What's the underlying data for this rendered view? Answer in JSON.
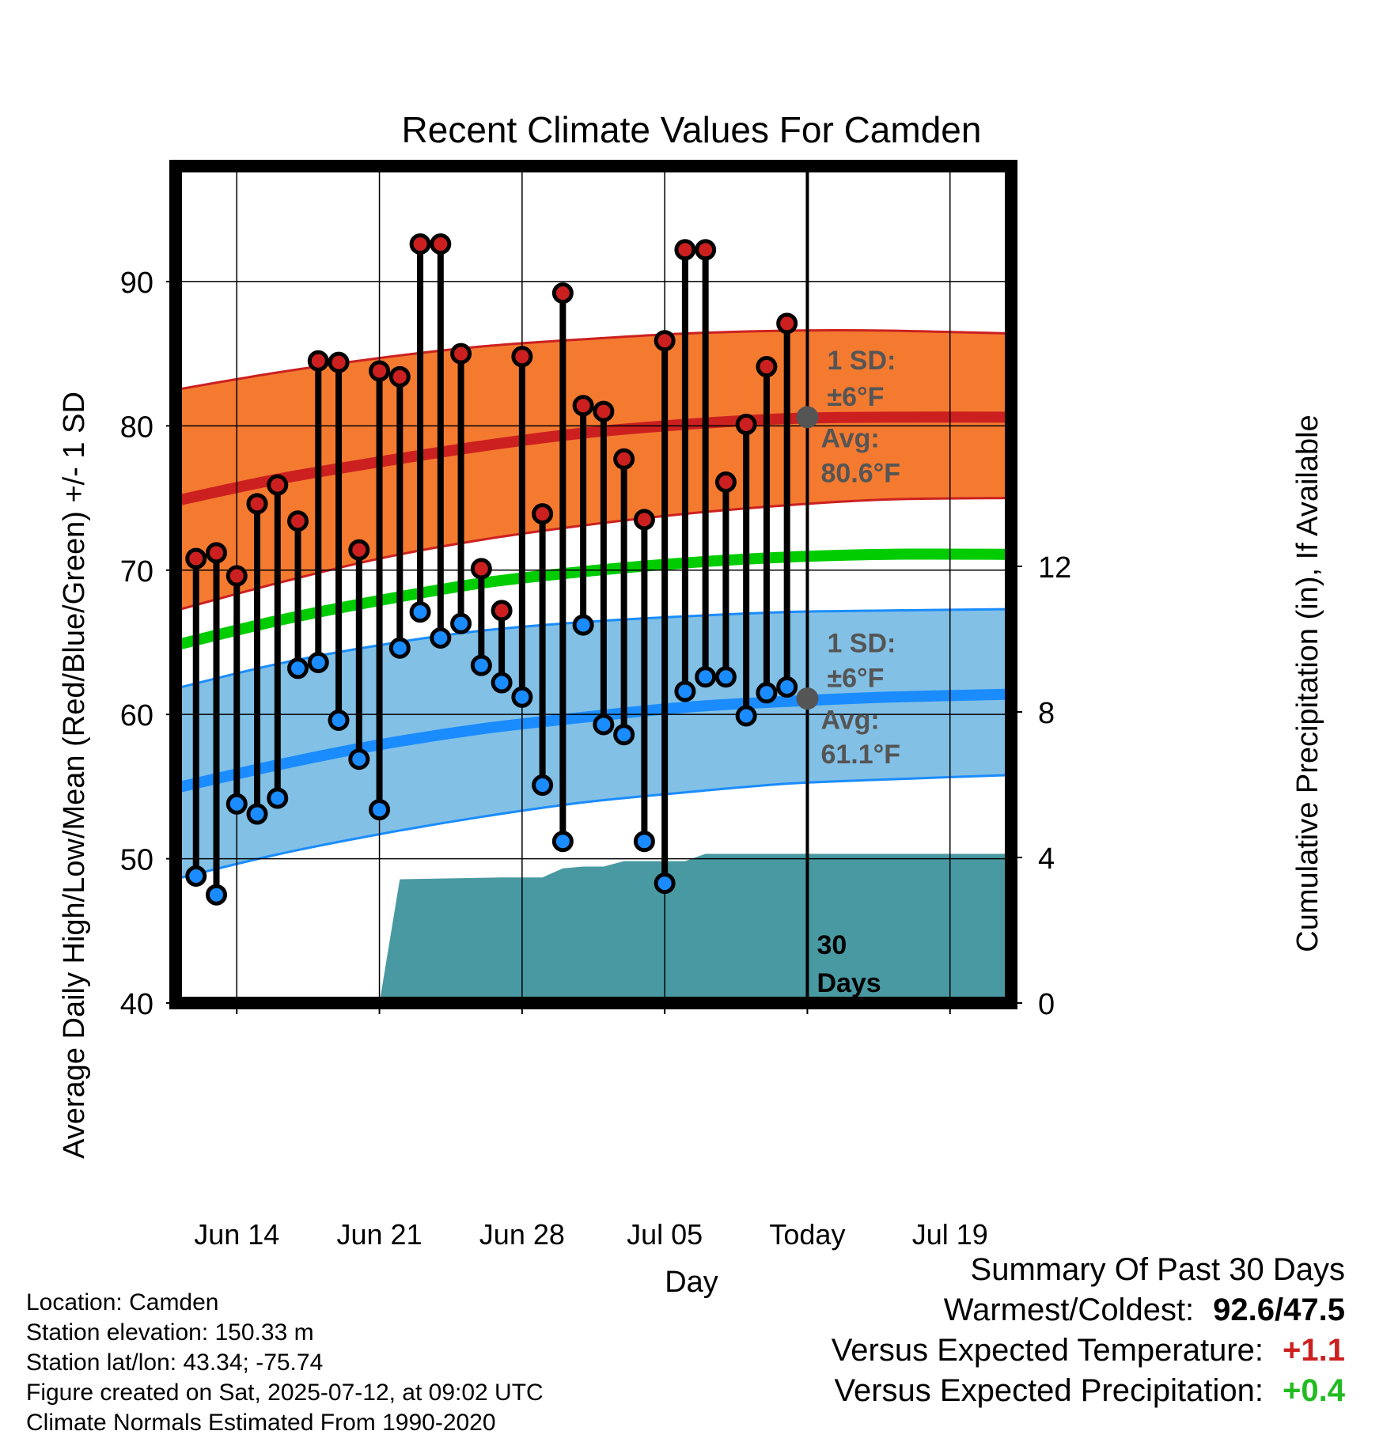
{
  "chart_data": {
    "type": "line",
    "title": "Recent Climate Values For Camden",
    "xlabel": "Day",
    "ylabel": "Average Daily High/Low/Mean (Red/Blue/Green) +/- 1 SD",
    "y2label": "Cumulative Precipitation (in), If Available",
    "x_tick_labels": [
      "Jun 14",
      "Jun 21",
      "Jun 28",
      "Jul 05",
      "Today",
      "Jul 19"
    ],
    "x_tick_days": [
      "2025-06-14",
      "2025-06-21",
      "2025-06-28",
      "2025-07-05",
      "2025-07-12",
      "2025-07-19"
    ],
    "xlim": [
      "2025-06-11",
      "2025-07-22"
    ],
    "ylim": [
      40,
      98
    ],
    "y_ticks": [
      40,
      50,
      60,
      70,
      80,
      90
    ],
    "y2lim": [
      0,
      23
    ],
    "y2_ticks": [
      0,
      4,
      8,
      12
    ],
    "grid": true,
    "dates": [
      "2025-06-12",
      "2025-06-13",
      "2025-06-14",
      "2025-06-15",
      "2025-06-16",
      "2025-06-17",
      "2025-06-18",
      "2025-06-19",
      "2025-06-20",
      "2025-06-21",
      "2025-06-22",
      "2025-06-23",
      "2025-06-24",
      "2025-06-25",
      "2025-06-26",
      "2025-06-27",
      "2025-06-28",
      "2025-06-29",
      "2025-06-30",
      "2025-07-01",
      "2025-07-02",
      "2025-07-03",
      "2025-07-04",
      "2025-07-05",
      "2025-07-06",
      "2025-07-07",
      "2025-07-08",
      "2025-07-09",
      "2025-07-10",
      "2025-07-11"
    ],
    "daily_high": [
      70.8,
      71.2,
      69.6,
      74.6,
      75.9,
      73.4,
      84.5,
      84.4,
      71.4,
      83.8,
      83.4,
      92.6,
      92.6,
      85.0,
      70.1,
      67.2,
      84.8,
      73.9,
      89.2,
      81.4,
      81.0,
      77.7,
      73.5,
      85.9,
      92.2,
      92.2,
      76.1,
      80.1,
      84.1,
      87.1
    ],
    "daily_low": [
      48.8,
      47.5,
      53.8,
      53.1,
      54.2,
      63.2,
      63.6,
      59.6,
      56.9,
      53.4,
      64.6,
      67.1,
      65.3,
      66.3,
      63.4,
      62.2,
      61.2,
      55.1,
      51.2,
      66.2,
      59.3,
      58.6,
      51.2,
      48.3,
      61.6,
      62.6,
      62.6,
      59.9,
      61.5,
      61.9
    ],
    "normals_days": [
      "2025-06-11",
      "2025-06-16",
      "2025-06-21",
      "2025-06-26",
      "2025-07-01",
      "2025-07-06",
      "2025-07-11",
      "2025-07-16",
      "2025-07-22"
    ],
    "normal_high": [
      74.8,
      76.3,
      77.5,
      78.6,
      79.5,
      80.1,
      80.5,
      80.6,
      80.6
    ],
    "normal_high_upper": [
      82.5,
      83.7,
      84.7,
      85.5,
      86.0,
      86.4,
      86.6,
      86.6,
      86.4
    ],
    "normal_high_lower": [
      67.2,
      69.1,
      70.8,
      72.1,
      73.1,
      73.9,
      74.5,
      74.9,
      75.0
    ],
    "normal_mean": [
      64.8,
      66.5,
      67.9,
      69.1,
      69.9,
      70.5,
      70.9,
      71.1,
      71.1
    ],
    "normal_low": [
      54.9,
      56.5,
      57.9,
      59.0,
      59.8,
      60.5,
      60.9,
      61.2,
      61.4
    ],
    "normal_low_upper": [
      61.8,
      63.5,
      64.8,
      65.8,
      66.4,
      66.8,
      67.1,
      67.2,
      67.3
    ],
    "normal_low_lower": [
      48.6,
      50.3,
      51.7,
      52.9,
      53.9,
      54.6,
      55.2,
      55.5,
      55.8
    ],
    "precip_days": [
      "2025-06-21",
      "2025-06-22",
      "2025-06-27",
      "2025-06-29",
      "2025-06-30",
      "2025-07-01",
      "2025-07-02",
      "2025-07-03",
      "2025-07-04",
      "2025-07-05",
      "2025-07-06",
      "2025-07-07",
      "2025-07-22"
    ],
    "precip_cumulative": [
      0.0,
      3.4,
      3.45,
      3.45,
      3.7,
      3.75,
      3.75,
      3.9,
      3.9,
      3.9,
      3.9,
      4.1,
      4.1
    ],
    "today_avg_high": 80.6,
    "today_avg_low": 61.1,
    "annotations": {
      "high_sd_label": "1 SD:",
      "high_sd_value": "±6°F",
      "high_avg_label": "Avg:",
      "high_avg_value": "80.6°F",
      "low_sd_label": "1 SD:",
      "low_sd_value": "±6°F",
      "low_avg_label": "Avg:",
      "low_avg_value": "61.1°F",
      "days_line1": "30",
      "days_line2": "Days"
    },
    "colors": {
      "high_band": "#f47a30",
      "high_line": "#cc2020",
      "low_band": "#82c0e6",
      "low_line": "#1a8cff",
      "mean_line": "#00cc00",
      "precip": "#4999a2",
      "high_dot": "#cc2020",
      "low_dot": "#1a8cff",
      "annotation_text": "#555555"
    }
  },
  "info": {
    "location": "Location: Camden",
    "elevation": "Station elevation: 150.33 m",
    "latlon": "Station lat/lon: 43.34; -75.74",
    "created": "Figure created on Sat, 2025-07-12, at 09:02 UTC",
    "normals": "Climate Normals Estimated From 1990-2020"
  },
  "summary": {
    "title": "Summary Of Past 30 Days",
    "warm_cold_label": "Warmest/Coldest:",
    "warm_cold_value": "92.6/47.5",
    "temp_label": "Versus Expected Temperature:",
    "temp_value": "+1.1",
    "temp_color": "#cc2020",
    "precip_label": "Versus Expected Precipitation:",
    "precip_value": "+0.4",
    "precip_color": "#22bb22"
  }
}
